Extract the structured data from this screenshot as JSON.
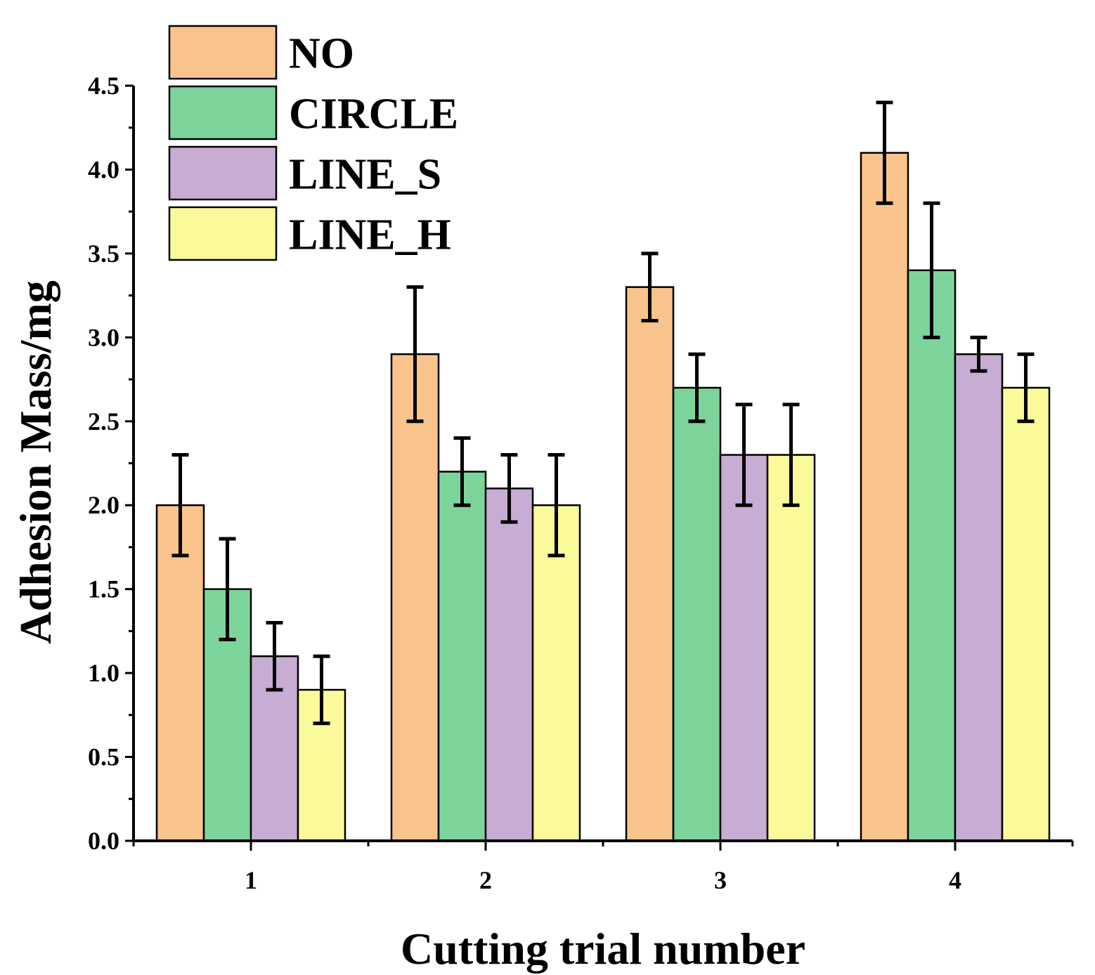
{
  "chart_data": {
    "type": "bar",
    "title": "",
    "xlabel": "Cutting trial number",
    "ylabel": "Adhesion Mass/mg",
    "categories": [
      "1",
      "2",
      "3",
      "4"
    ],
    "ylim": [
      0,
      4.5
    ],
    "yticks": [
      "0.0",
      "0.5",
      "1.0",
      "1.5",
      "2.0",
      "2.5",
      "3.0",
      "3.5",
      "4.0",
      "4.5"
    ],
    "legend_position": "top-left",
    "series": [
      {
        "name": "NO",
        "color": "#f9c48c",
        "values": [
          2.0,
          2.9,
          3.3,
          4.1
        ],
        "errors": [
          0.3,
          0.4,
          0.2,
          0.3
        ]
      },
      {
        "name": "CIRCLE",
        "color": "#7dd49b",
        "values": [
          1.5,
          2.2,
          2.7,
          3.4
        ],
        "errors": [
          0.3,
          0.2,
          0.2,
          0.4
        ]
      },
      {
        "name": "LINE_S",
        "color": "#c7acd4",
        "values": [
          1.1,
          2.1,
          2.3,
          2.9
        ],
        "errors": [
          0.2,
          0.2,
          0.3,
          0.1
        ]
      },
      {
        "name": "LINE_H",
        "color": "#fafa9b",
        "values": [
          0.9,
          2.0,
          2.3,
          2.7
        ],
        "errors": [
          0.2,
          0.3,
          0.3,
          0.2
        ]
      }
    ]
  }
}
